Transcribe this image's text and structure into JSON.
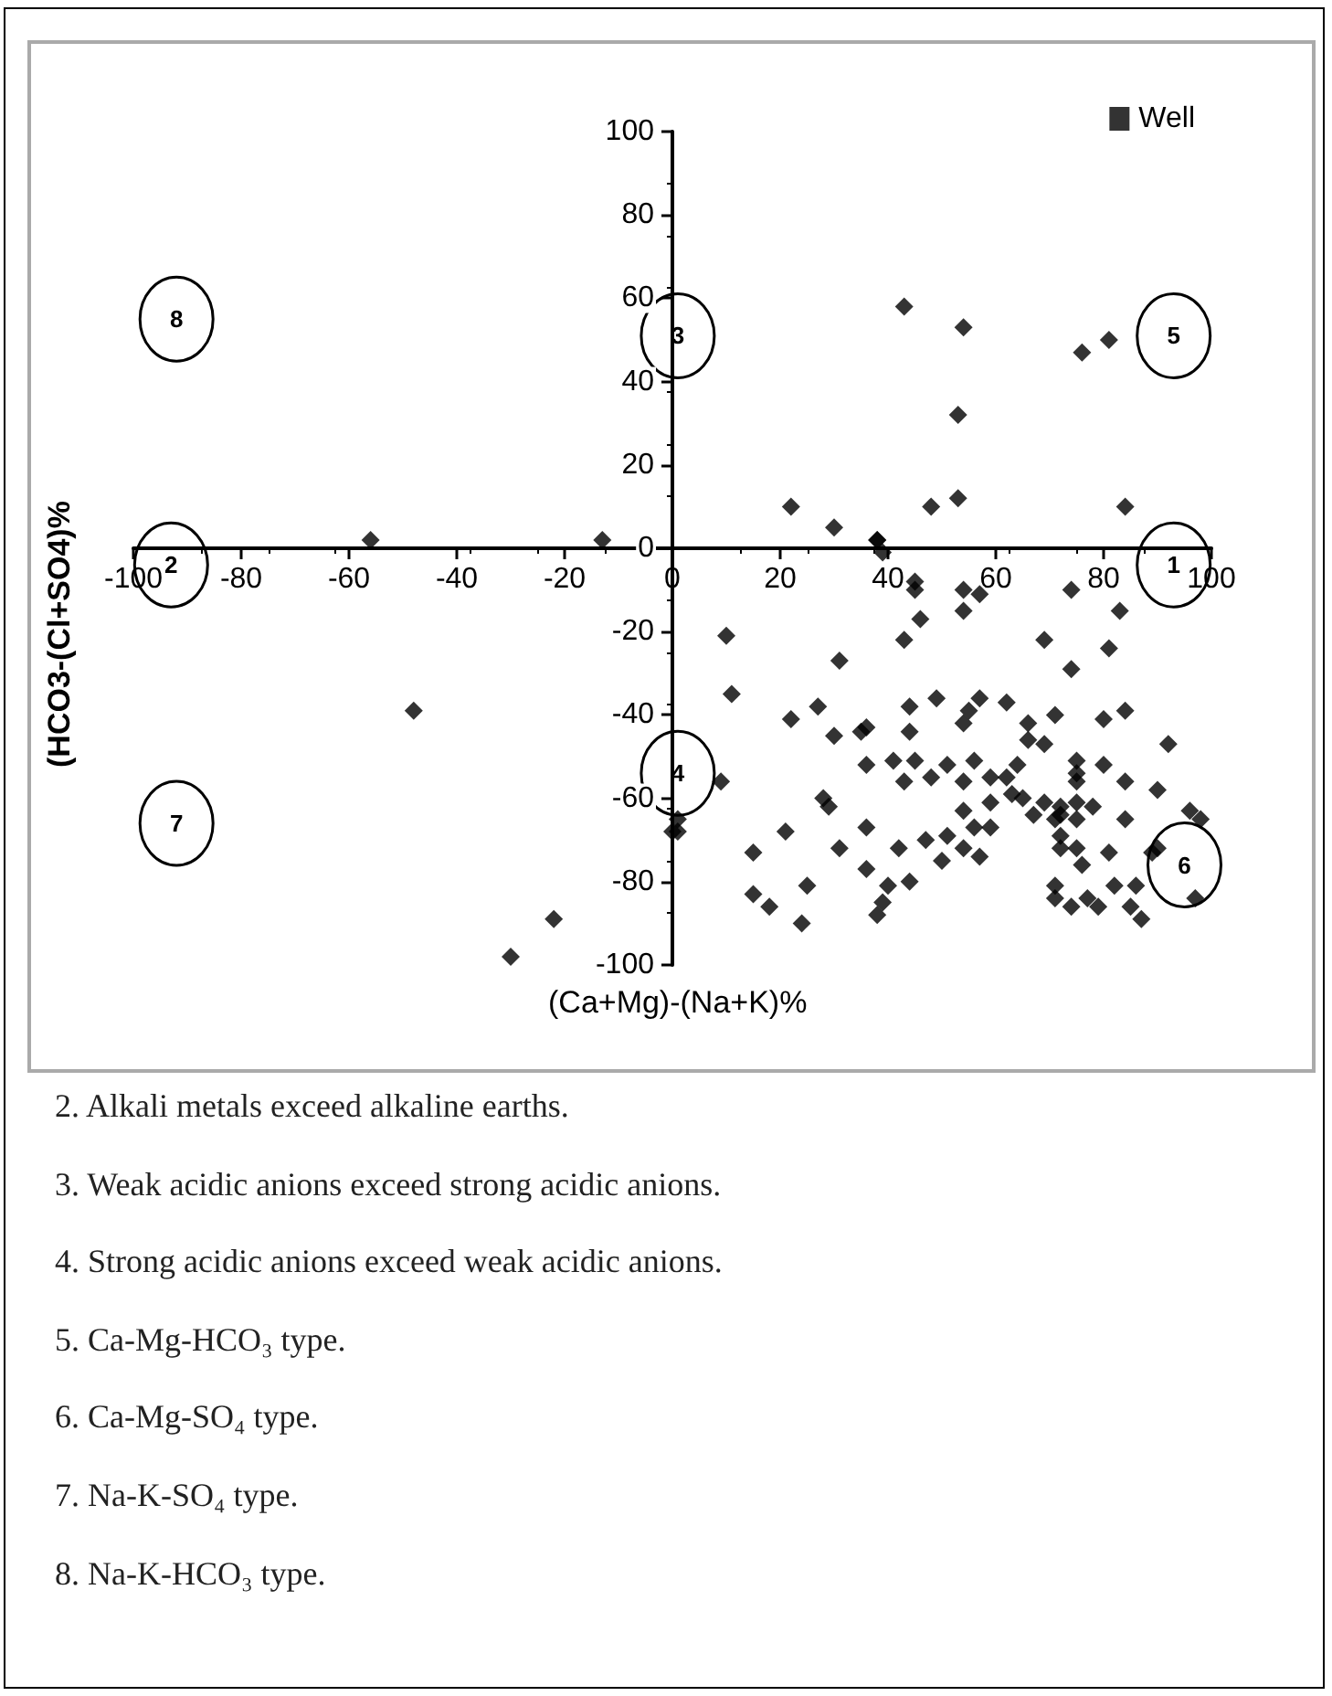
{
  "chart_data": {
    "type": "scatter",
    "xlabel": "(Ca+Mg)-(Na+K)%",
    "ylabel": "(HCO3-(Cl+SO4)%",
    "xlim": [
      -100,
      100
    ],
    "xticks": [
      -100,
      -80,
      -60,
      -40,
      -20,
      0,
      20,
      40,
      60,
      80,
      100
    ],
    "ylim": [
      -100,
      100
    ],
    "yticks": [
      -100,
      -80,
      -60,
      -40,
      -20,
      0,
      20,
      40,
      60,
      80,
      100
    ],
    "legend": "top right",
    "marker": "diamond",
    "series": [
      {
        "name": "Well",
        "color": "#000000",
        "x": [
          43,
          54,
          53,
          76,
          81,
          22,
          30,
          38,
          48,
          53,
          84,
          -56,
          -13,
          -48,
          -22,
          -30,
          0,
          1,
          1,
          38,
          39,
          45,
          45,
          46,
          54,
          54,
          57,
          74,
          83,
          10,
          43,
          69,
          81,
          31,
          74,
          11,
          22,
          27,
          30,
          35,
          36,
          44,
          49,
          44,
          54,
          55,
          57,
          62,
          66,
          66,
          69,
          71,
          80,
          84,
          92,
          9,
          36,
          41,
          43,
          45,
          48,
          51,
          54,
          56,
          59,
          62,
          64,
          63,
          65,
          67,
          69,
          71,
          72,
          75,
          75,
          75,
          78,
          80,
          84,
          90,
          96,
          98,
          97,
          28,
          29,
          21,
          15,
          31,
          36,
          36,
          42,
          47,
          50,
          51,
          54,
          54,
          56,
          57,
          59,
          59,
          15,
          18,
          24,
          25,
          38,
          39,
          40,
          44,
          72,
          75,
          76,
          71,
          71,
          74,
          77,
          79,
          82,
          81,
          84,
          85,
          86,
          87,
          89,
          90,
          75,
          75,
          72,
          72
        ],
        "values": [
          58,
          53,
          32,
          47,
          50,
          10,
          5,
          2,
          10,
          12,
          10,
          2,
          2,
          -39,
          -89,
          -98,
          -68,
          -65,
          -68,
          2,
          -1,
          -8,
          -10,
          -17,
          -10,
          -15,
          -11,
          -10,
          -15,
          -21,
          -22,
          -22,
          -24,
          -27,
          -29,
          -35,
          -41,
          -38,
          -45,
          -44,
          -43,
          -38,
          -36,
          -44,
          -42,
          -39,
          -36,
          -37,
          -42,
          -46,
          -47,
          -40,
          -41,
          -39,
          -47,
          -56,
          -52,
          -51,
          -56,
          -51,
          -55,
          -52,
          -56,
          -51,
          -55,
          -55,
          -52,
          -59,
          -60,
          -64,
          -61,
          -65,
          -62,
          -51,
          -56,
          -61,
          -62,
          -52,
          -56,
          -58,
          -63,
          -65,
          -84,
          -60,
          -62,
          -68,
          -73,
          -72,
          -67,
          -77,
          -72,
          -70,
          -75,
          -69,
          -63,
          -72,
          -67,
          -74,
          -67,
          -61,
          -83,
          -86,
          -90,
          -81,
          -88,
          -85,
          -81,
          -80,
          -72,
          -72,
          -76,
          -81,
          -84,
          -86,
          -84,
          -86,
          -81,
          -73,
          -65,
          -86,
          -81,
          -89,
          -73,
          -72,
          -54,
          -65,
          -69,
          -64
        ]
      }
    ],
    "annotations": [
      "1",
      "2",
      "3",
      "4",
      "5",
      "6",
      "7",
      "8",
      "2. Alkali metals exceed alkaline earths.",
      "3. Weak acidic anions exceed strong acidic anions.",
      "4. Strong acidic anions exceed weak acidic anions.",
      "5. Ca-Mg-HCO₃ type.",
      "6. Ca-Mg-SO₄ type.",
      "7. Na-K-SO₄ type.",
      "8. Na-K-HCO₃ type."
    ]
  }
}
